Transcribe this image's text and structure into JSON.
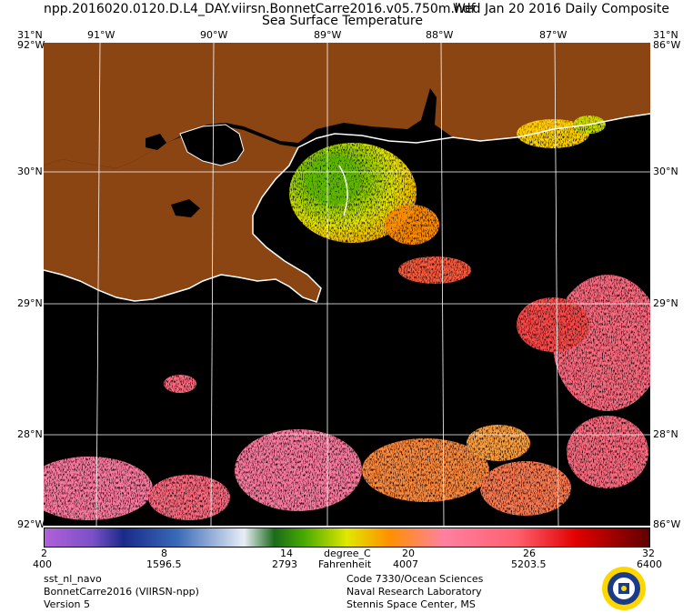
{
  "header": {
    "file": "npp.2016020.0120.D.L4_DAY.viirsn.BonnetCarre2016.v05.750m.hdf",
    "composite": "Wed Jan 20 2016 Daily Composite",
    "subtitle": "Sea Surface Temperature"
  },
  "map": {
    "lat_labels": [
      "31°N",
      "30°N",
      "29°N",
      "28°N"
    ],
    "lon_labels_top": [
      "91°W",
      "90°W",
      "89°W",
      "88°W",
      "87°W"
    ],
    "corner_top_left": "31°N",
    "corner_top_right": "31°N",
    "edge_top_left": "92°W",
    "edge_top_right": "86°W",
    "corner_bottom_left": "92°W",
    "corner_bottom_right": "86°W",
    "land_color": "#8b4513",
    "no_data_color": "#000000",
    "coast_color": "#ffffff"
  },
  "colorbar": {
    "units_c": "degree_C",
    "units_f": "Fahrenheit",
    "labels_top": [
      "2",
      "8",
      "14",
      "20",
      "26",
      "32"
    ],
    "labels_bottom": [
      "400",
      "1596.5",
      "2793",
      "4007",
      "5203.5",
      "6400"
    ]
  },
  "footer": {
    "left": [
      "sst_nl_navo",
      "BonnetCarre2016 (VIIRSN-npp)",
      "Version 5"
    ],
    "right": [
      "Code 7330/Ocean Sciences",
      "Naval Research Laboratory",
      "Stennis Space Center, MS"
    ]
  },
  "logo": {
    "name": "naval-research-laboratory-seal"
  }
}
